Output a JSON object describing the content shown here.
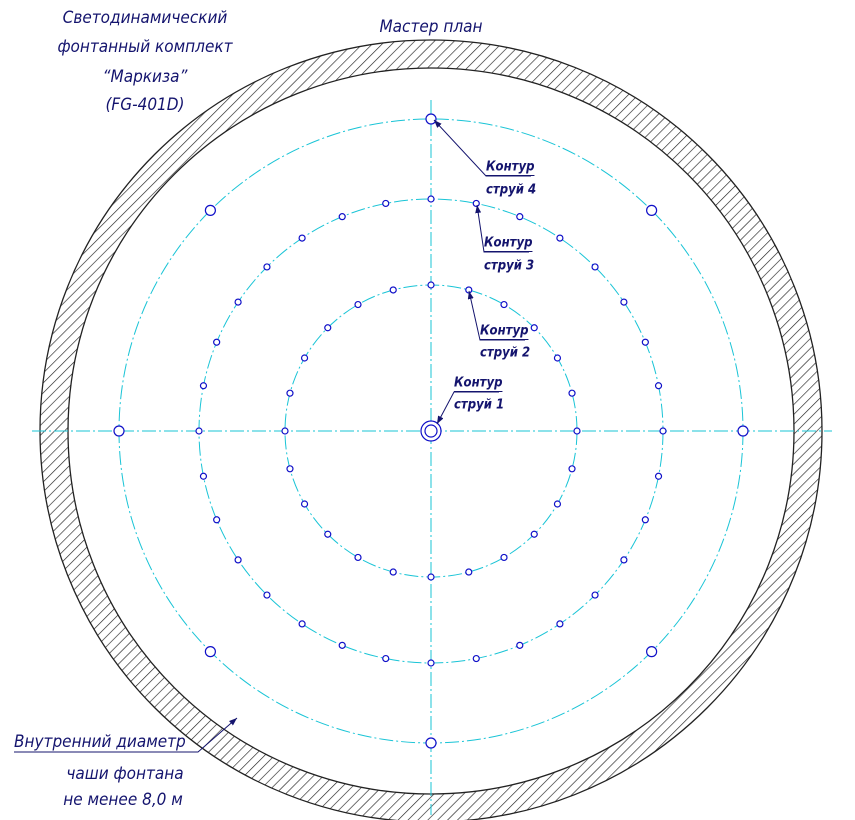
{
  "title": {
    "lines": [
      "Светодинамический",
      "фонтанный комплект",
      "“Маркиза”",
      "(FG-401D)"
    ]
  },
  "plan_title": "Мастер план",
  "contours": [
    {
      "word": "Контур",
      "name": "струй 4"
    },
    {
      "word": "Контур",
      "name": "струй 3"
    },
    {
      "word": "Контур",
      "name": "струй 2"
    },
    {
      "word": "Контур",
      "name": "струй 1"
    }
  ],
  "note": {
    "lines": [
      "Внутренний диаметр",
      "чаши фонтана",
      "не менее 8,0 м"
    ]
  }
}
